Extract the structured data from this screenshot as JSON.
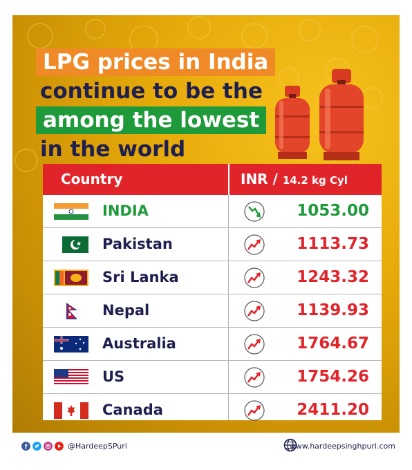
{
  "headline": {
    "line1": "LPG prices in India",
    "line2": "continue to be the",
    "line3": "among the lowest",
    "line4": "in the world"
  },
  "table": {
    "header_country": "Country",
    "header_price_main": "INR / ",
    "header_price_unit": "14.2 kg Cyl",
    "rows": [
      {
        "country": "INDIA",
        "price": "1053.00",
        "trend": "down",
        "flag": "india-flag",
        "price_color": "#1f9a3a"
      },
      {
        "country": "Pakistan",
        "price": "1113.73",
        "trend": "up",
        "flag": "pakistan-flag",
        "price_color": "#e0242a"
      },
      {
        "country": "Sri Lanka",
        "price": "1243.32",
        "trend": "up",
        "flag": "sri-lanka-flag",
        "price_color": "#e0242a"
      },
      {
        "country": "Nepal",
        "price": "1139.93",
        "trend": "up",
        "flag": "nepal-flag",
        "price_color": "#e0242a"
      },
      {
        "country": "Australia",
        "price": "1764.67",
        "trend": "up",
        "flag": "australia-flag",
        "price_color": "#e0242a"
      },
      {
        "country": "US",
        "price": "1754.26",
        "trend": "up",
        "flag": "us-flag",
        "price_color": "#e0242a"
      },
      {
        "country": "Canada",
        "price": "2411.20",
        "trend": "up",
        "flag": "canada-flag",
        "price_color": "#e0242a"
      }
    ]
  },
  "footer": {
    "handle": "@HardeepSPuri",
    "website": "www.hardeepsinghpuri.com",
    "social_icons": [
      "facebook-icon",
      "twitter-icon",
      "instagram-icon",
      "youtube-icon"
    ]
  },
  "colors": {
    "accent_orange": "#f08a27",
    "accent_green": "#1f9a3a",
    "accent_red": "#e0242a",
    "navy_text": "#1f1f4f",
    "background_yellow": "#e6a90a"
  }
}
